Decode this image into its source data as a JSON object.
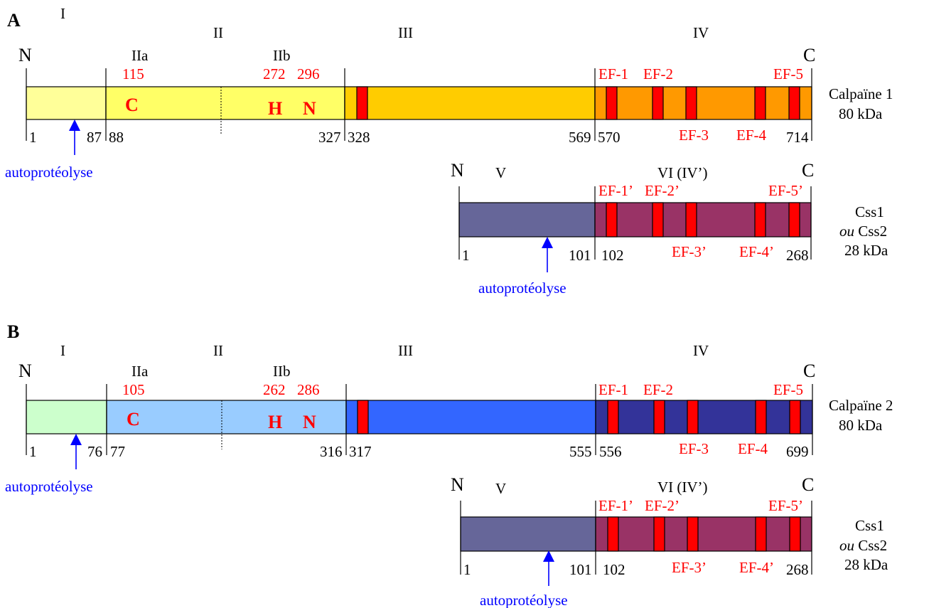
{
  "colors": {
    "red": "#ff0000",
    "blue": "#0000ff",
    "cal1_d1": "#ffff99",
    "cal1_d2": "#ffff66",
    "cal1_d3": "#ffcc00",
    "cal1_d4": "#ff9900",
    "cal2_d1": "#ccffcc",
    "cal2_d2": "#99ccff",
    "cal2_d3": "#3366ff",
    "cal2_d4": "#333399",
    "small_d5": "#666699",
    "small_d6": "#993366"
  },
  "panelA": {
    "letter": "A",
    "domains": {
      "I": "I",
      "II": "II",
      "IIa": "IIa",
      "IIb": "IIb",
      "III": "III",
      "IV": "IV"
    },
    "N": "N",
    "C": "C",
    "active_positions": {
      "cys": "115",
      "his": "272",
      "asn": "296"
    },
    "residues": {
      "C": "C",
      "H": "H",
      "N": "N"
    },
    "ef_top": {
      "ef1": "EF-1",
      "ef2": "EF-2",
      "ef5": "EF-5"
    },
    "ef_bottom": {
      "ef3": "EF-3",
      "ef4": "EF-4"
    },
    "numbers": {
      "n1": "1",
      "n87": "87",
      "n88": "88",
      "n327": "327",
      "n328": "328",
      "n569": "569",
      "n570": "570",
      "n714": "714"
    },
    "autoproteolysis": "autoprotéolyse",
    "name": "Calpaïne 1",
    "mass": "80 kDa",
    "small": {
      "N": "N",
      "C": "C",
      "V": "V",
      "VI": "VI (IV’)",
      "ef_top": {
        "ef1": "EF-1’",
        "ef2": "EF-2’",
        "ef5": "EF-5’"
      },
      "ef_bottom": {
        "ef3": "EF-3’",
        "ef4": "EF-4’"
      },
      "numbers": {
        "n1": "1",
        "n101": "101",
        "n102": "102",
        "n268": "268"
      },
      "autoproteolysis": "autoprotéolyse",
      "name_line1": "Css1",
      "name_ou": "ou",
      "name_line2": "Css2",
      "mass": "28 kDa"
    }
  },
  "panelB": {
    "letter": "B",
    "domains": {
      "I": "I",
      "II": "II",
      "IIa": "IIa",
      "IIb": "IIb",
      "III": "III",
      "IV": "IV"
    },
    "N": "N",
    "C": "C",
    "active_positions": {
      "cys": "105",
      "his": "262",
      "asn": "286"
    },
    "residues": {
      "C": "C",
      "H": "H",
      "N": "N"
    },
    "ef_top": {
      "ef1": "EF-1",
      "ef2": "EF-2",
      "ef5": "EF-5"
    },
    "ef_bottom": {
      "ef3": "EF-3",
      "ef4": "EF-4"
    },
    "numbers": {
      "n1": "1",
      "n76": "76",
      "n77": "77",
      "n316": "316",
      "n317": "317",
      "n555": "555",
      "n556": "556",
      "n699": "699"
    },
    "autoproteolysis": "autoprotéolyse",
    "name": "Calpaïne 2",
    "mass": "80 kDa",
    "small": {
      "N": "N",
      "C": "C",
      "V": "V",
      "VI": "VI (IV’)",
      "ef_top": {
        "ef1": "EF-1’",
        "ef2": "EF-2’",
        "ef5": "EF-5’"
      },
      "ef_bottom": {
        "ef3": "EF-3’",
        "ef4": "EF-4’"
      },
      "numbers": {
        "n1": "1",
        "n101": "101",
        "n102": "102",
        "n268": "268"
      },
      "autoproteolysis": "autoprotéolyse",
      "name_line1": "Css1",
      "name_ou": "ou",
      "name_line2": "Css2",
      "mass": "28 kDa"
    }
  }
}
